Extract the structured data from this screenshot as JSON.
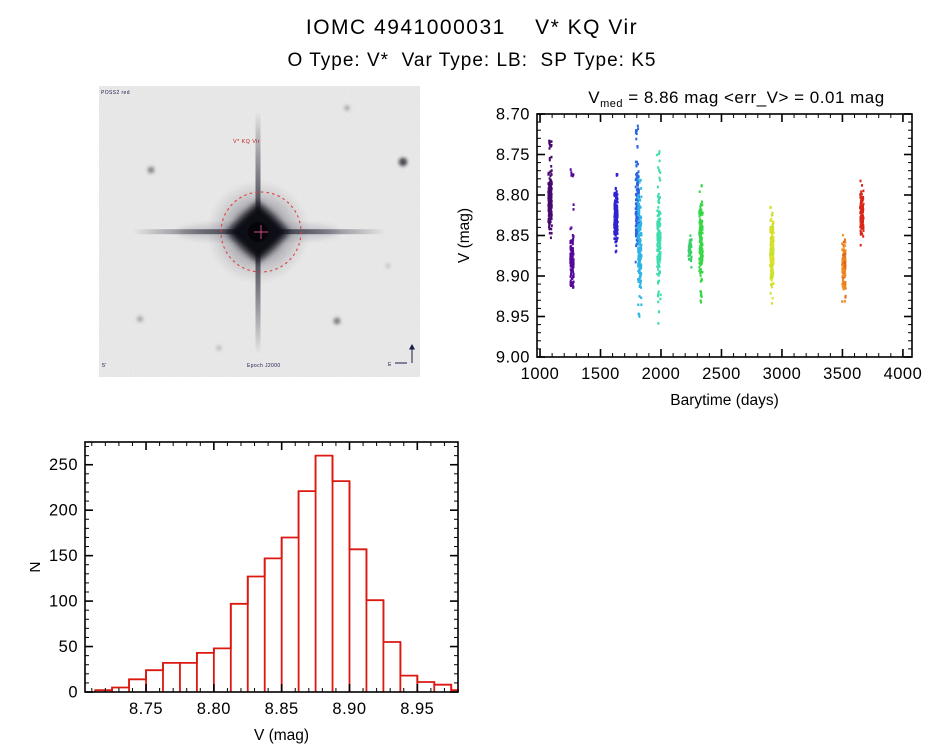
{
  "header": {
    "title": "IOMC 4941000031    V* KQ Vir",
    "subtitle": "O Type: V*  Var Type: LB:  SP Type: K5"
  },
  "finding_chart": {
    "survey_label": "POSS2 red",
    "target_label": "V* KQ Vir",
    "epoch_label": "Epoch J2000",
    "scale_label": "5'",
    "compass_east_label": "E",
    "marker_color": "#e23c3c"
  },
  "chart_data": [
    {
      "type": "scatter",
      "name": "lightcurve",
      "title": "Vmed = 8.86 mag <err_V> = 0.01 mag",
      "title_parts": {
        "prefix": "V",
        "sub": "med",
        "rest": " = 8.86 mag <err_V> = 0.01 mag"
      },
      "xlabel": "Barytime (days)",
      "ylabel": "V (mag)",
      "xlim": [
        975,
        4075
      ],
      "ylim_top": 8.7,
      "ylim_bottom": 9.0,
      "xticks": [
        1000,
        1500,
        2000,
        2500,
        3000,
        3500,
        4000
      ],
      "yticks": [
        8.7,
        8.75,
        8.8,
        8.85,
        8.9,
        8.95,
        9.0
      ],
      "x_minor_step": 100,
      "y_minor_step": 0.01,
      "x_decimals": 0,
      "y_decimals": 2,
      "axis_color": "#000000",
      "legend": "none",
      "grid": false,
      "note": "V magnitude increases downward; each vertical strip is one observing epoch, rainbow color encodes time",
      "clusters": [
        {
          "t": 1083,
          "color": "#46096e",
          "v_min": 8.733,
          "v_max": 8.863,
          "v_dense_min": 8.77,
          "v_dense_max": 8.848,
          "n": 170
        },
        {
          "t": 1264,
          "color": "#55089a",
          "v_min": 8.768,
          "v_max": 8.923,
          "v_dense_min": 8.842,
          "v_dense_max": 8.92,
          "n": 120
        },
        {
          "t": 1628,
          "color": "#3023cf",
          "v_min": 8.772,
          "v_max": 8.873,
          "v_dense_min": 8.79,
          "v_dense_max": 8.862,
          "n": 140
        },
        {
          "t": 1805,
          "color": "#2b66e0",
          "v_min": 8.712,
          "v_max": 8.885,
          "v_dense_min": 8.755,
          "v_dense_max": 8.872,
          "n": 160
        },
        {
          "t": 1824,
          "color": "#2fb4e4",
          "v_min": 8.78,
          "v_max": 8.952,
          "v_dense_min": 8.8,
          "v_dense_max": 8.93,
          "n": 170
        },
        {
          "t": 1983,
          "color": "#3cdcae",
          "v_min": 8.735,
          "v_max": 8.962,
          "v_dense_min": 8.795,
          "v_dense_max": 8.912,
          "n": 150
        },
        {
          "t": 2240,
          "color": "#3bcf6b",
          "v_min": 8.845,
          "v_max": 8.89,
          "v_dense_min": 8.852,
          "v_dense_max": 8.886,
          "n": 45
        },
        {
          "t": 2331,
          "color": "#35d844",
          "v_min": 8.78,
          "v_max": 8.933,
          "v_dense_min": 8.808,
          "v_dense_max": 8.902,
          "n": 140
        },
        {
          "t": 2917,
          "color": "#b8e030",
          "color2": "#f0df26",
          "v_min": 8.812,
          "v_max": 8.937,
          "v_dense_min": 8.828,
          "v_dense_max": 8.912,
          "n": 160
        },
        {
          "t": 3512,
          "color": "#f09c26",
          "color2": "#e05c18",
          "v_min": 8.848,
          "v_max": 8.933,
          "v_dense_min": 8.855,
          "v_dense_max": 8.926,
          "n": 120
        },
        {
          "t": 3661,
          "color": "#d92616",
          "v_min": 8.782,
          "v_max": 8.862,
          "v_dense_min": 8.798,
          "v_dense_max": 8.852,
          "n": 100
        }
      ]
    },
    {
      "type": "histogram",
      "name": "v-mag-histogram",
      "title": "",
      "xlabel": "V (mag)",
      "ylabel": "N",
      "bar_color": "#dc1810",
      "axis_color": "#000000",
      "xlim": [
        8.705,
        8.98
      ],
      "ylim": [
        0,
        275
      ],
      "xticks": [
        8.75,
        8.8,
        8.85,
        8.9,
        8.95
      ],
      "yticks": [
        0,
        50,
        100,
        150,
        200,
        250
      ],
      "x_minor_step": 0.01,
      "y_minor_step": 10,
      "x_decimals": 2,
      "y_decimals": 0,
      "bin_start": 8.7125,
      "bin_width": 0.0125,
      "counts": [
        2,
        5,
        14,
        24,
        32,
        32,
        43,
        48,
        97,
        127,
        147,
        170,
        221,
        260,
        232,
        157,
        101,
        55,
        18,
        11,
        8,
        2
      ]
    }
  ]
}
